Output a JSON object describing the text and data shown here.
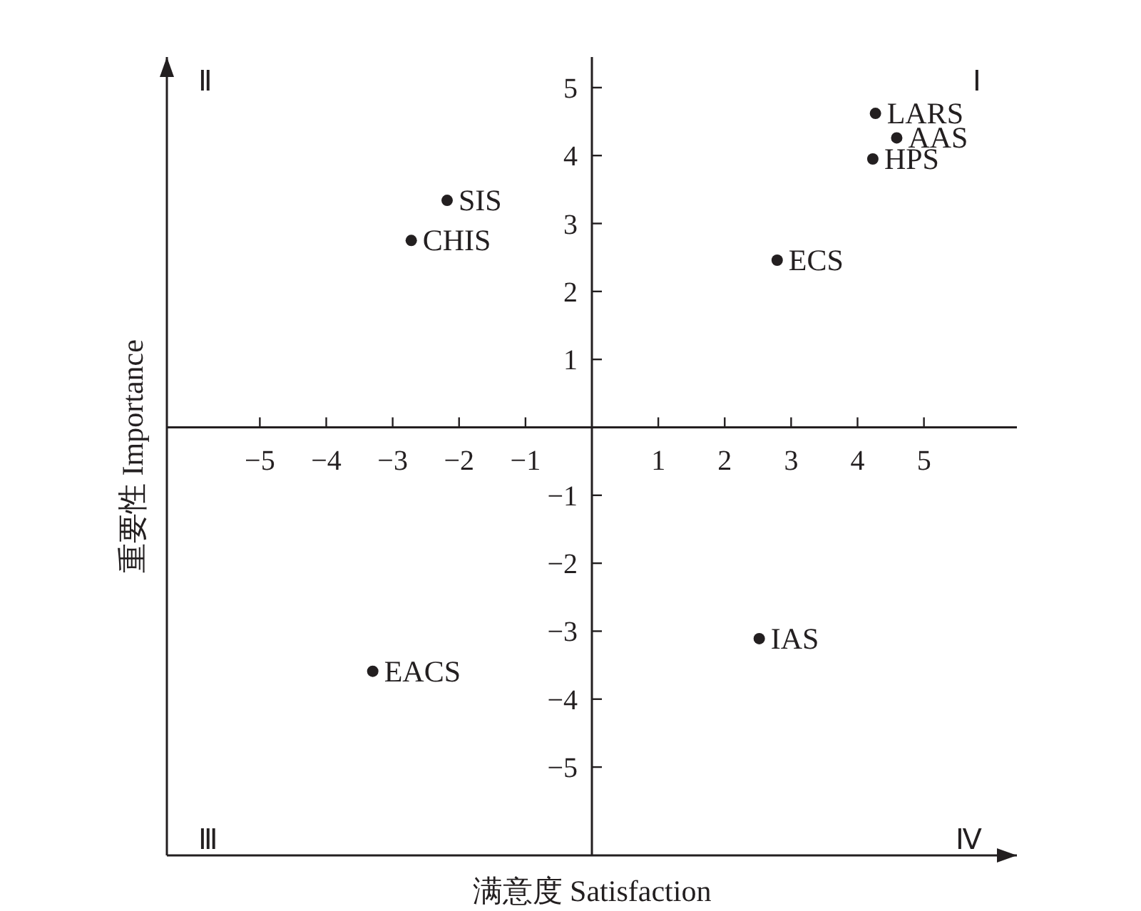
{
  "chart_data": {
    "type": "scatter",
    "xlabel": "满意度 Satisfaction",
    "ylabel": "重要性 Importance",
    "xlim": [
      -6.4,
      6.4
    ],
    "ylim": [
      -6.3,
      5.45
    ],
    "xticks": [
      -5,
      -4,
      -3,
      -2,
      -1,
      1,
      2,
      3,
      4,
      5
    ],
    "yticks": [
      -5,
      -4,
      -3,
      -2,
      -1,
      1,
      2,
      3,
      4,
      5
    ],
    "marker": "circle",
    "grid": false,
    "series": [
      {
        "color": "#231f20",
        "x": [
          4.27,
          4.59,
          4.23,
          2.79,
          -2.18,
          -2.72,
          -3.3,
          2.52
        ],
        "values": [
          4.62,
          4.26,
          3.95,
          2.46,
          3.34,
          2.75,
          -3.59,
          -3.11
        ]
      }
    ],
    "annotations": [
      {
        "text": "LARS",
        "x": 4.27,
        "y": 4.62
      },
      {
        "text": "AAS",
        "x": 4.59,
        "y": 4.26
      },
      {
        "text": "HPS",
        "x": 4.23,
        "y": 3.95
      },
      {
        "text": "ECS",
        "x": 2.79,
        "y": 2.46
      },
      {
        "text": "SIS",
        "x": -2.18,
        "y": 3.34
      },
      {
        "text": "CHIS",
        "x": -2.72,
        "y": 2.75
      },
      {
        "text": "EACS",
        "x": -3.3,
        "y": -3.59
      },
      {
        "text": "IAS",
        "x": 2.52,
        "y": -3.11
      },
      "Ⅱ",
      "Ⅰ",
      "Ⅲ",
      "Ⅳ"
    ]
  }
}
